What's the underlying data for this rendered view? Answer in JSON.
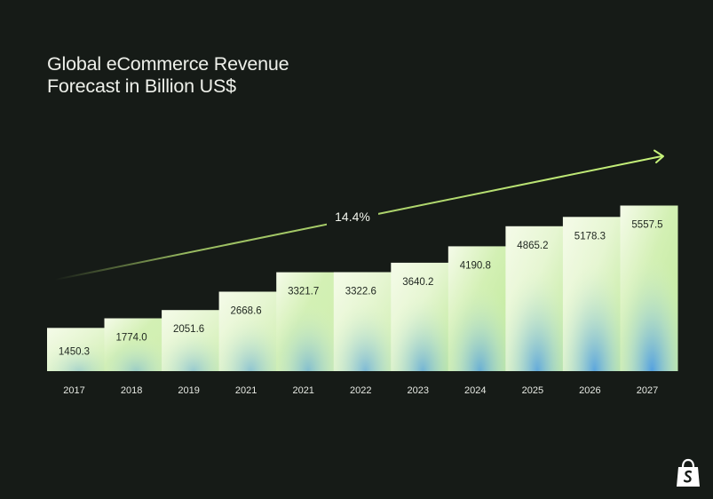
{
  "chart_data": {
    "type": "bar",
    "title_lines": [
      "Global eCommerce Revenue",
      "Forecast in Billion US$"
    ],
    "categories": [
      "2017",
      "2018",
      "2019",
      "2021",
      "2021",
      "2022",
      "2023",
      "2024",
      "2025",
      "2026",
      "2027"
    ],
    "values": [
      1450.3,
      1774.0,
      2051.6,
      2668.6,
      3321.7,
      3322.6,
      3640.2,
      4190.8,
      4865.2,
      5178.3,
      5557.5
    ],
    "value_labels": [
      "1450.3",
      "1774.0",
      "2051.6",
      "2668.6",
      "3321.7",
      "3322.6",
      "3640.2",
      "4190.8",
      "4865.2",
      "5178.3",
      "5557.5"
    ],
    "annotation": "14.4%",
    "xlabel": "",
    "ylabel": "",
    "grid": false,
    "legend": "none"
  },
  "brand": {
    "logo_icon": "shopify-bag-icon"
  },
  "colors": {
    "background": "#161b17",
    "bar_light": "#f3fbe6",
    "bar_green": "#c4ec9e",
    "bar_blue": "#4d9ce3",
    "arrow": "#c6f27a"
  }
}
